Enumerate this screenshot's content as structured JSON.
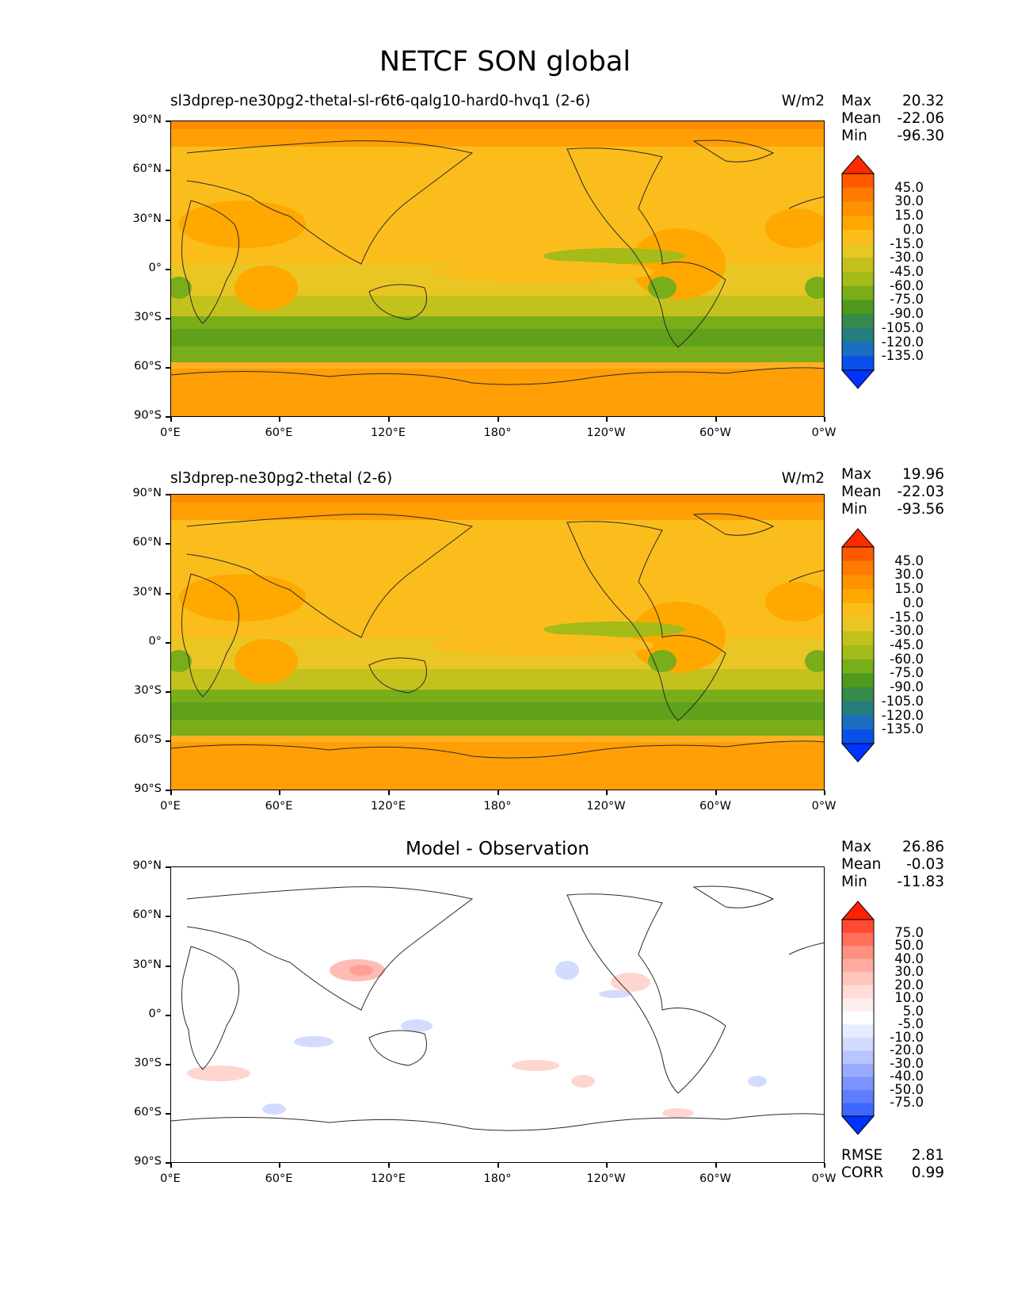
{
  "title": "NETCF SON global",
  "x_ticks": [
    "0°E",
    "60°E",
    "120°E",
    "180°",
    "120°W",
    "60°W",
    "0°W"
  ],
  "y_ticks": [
    "90°N",
    "60°N",
    "30°N",
    "0°",
    "30°S",
    "60°S",
    "90°S"
  ],
  "panels": [
    {
      "id": "test",
      "title_left": "sl3dprep-ne30pg2-thetal-sl-r6t6-qalg10-hard0-hvq1 (2-6)",
      "title_right": "W/m2",
      "stats": [
        {
          "label": "Max",
          "value": "20.32"
        },
        {
          "label": "Mean",
          "value": "-22.06"
        },
        {
          "label": "Min",
          "value": "-96.30"
        }
      ],
      "colorbar_labels": [
        "45.0",
        "30.0",
        "15.0",
        "0.0",
        "-15.0",
        "-30.0",
        "-45.0",
        "-60.0",
        "-75.0",
        "-90.0",
        "-105.0",
        "-120.0",
        "-135.0"
      ],
      "colorbar_colors": [
        "#ff2a00",
        "#ff5a00",
        "#ff7a00",
        "#ff9200",
        "#ffa800",
        "#fbbd1c",
        "#e9c623",
        "#c3c21c",
        "#a4bb1a",
        "#79ad1a",
        "#4f9a1c",
        "#368a4c",
        "#247e7e",
        "#1a6ec0",
        "#0a50e8",
        "#0033ff"
      ]
    },
    {
      "id": "ref",
      "title_left": "sl3dprep-ne30pg2-thetal (2-6)",
      "title_right": "W/m2",
      "stats": [
        {
          "label": "Max",
          "value": "19.96"
        },
        {
          "label": "Mean",
          "value": "-22.03"
        },
        {
          "label": "Min",
          "value": "-93.56"
        }
      ],
      "colorbar_labels": [
        "45.0",
        "30.0",
        "15.0",
        "0.0",
        "-15.0",
        "-30.0",
        "-45.0",
        "-60.0",
        "-75.0",
        "-90.0",
        "-105.0",
        "-120.0",
        "-135.0"
      ],
      "colorbar_colors": [
        "#ff2a00",
        "#ff5a00",
        "#ff7a00",
        "#ff9200",
        "#ffa800",
        "#fbbd1c",
        "#e9c623",
        "#c3c21c",
        "#a4bb1a",
        "#79ad1a",
        "#4f9a1c",
        "#368a4c",
        "#247e7e",
        "#1a6ec0",
        "#0a50e8",
        "#0033ff"
      ]
    },
    {
      "id": "diff",
      "title_center": "Model - Observation",
      "stats": [
        {
          "label": "Max",
          "value": "26.86"
        },
        {
          "label": "Mean",
          "value": "-0.03"
        },
        {
          "label": "Min",
          "value": "-11.83"
        }
      ],
      "bottom_stats": [
        {
          "label": "RMSE",
          "value": "2.81"
        },
        {
          "label": "CORR",
          "value": "0.99"
        }
      ],
      "colorbar_labels": [
        "75.0",
        "50.0",
        "40.0",
        "30.0",
        "20.0",
        "10.0",
        "5.0",
        "-5.0",
        "-10.0",
        "-20.0",
        "-30.0",
        "-40.0",
        "-50.0",
        "-75.0"
      ],
      "colorbar_colors": [
        "#ff2200",
        "#ff4a30",
        "#ff6f5a",
        "#ff8f80",
        "#ffaba0",
        "#ffc5bf",
        "#ffdcd8",
        "#ffeeec",
        "#ffffff",
        "#e8ecff",
        "#d3dcff",
        "#b8c6ff",
        "#99abff",
        "#7d94ff",
        "#5f7dff",
        "#3f66ff",
        "#0033ff"
      ]
    }
  ]
}
